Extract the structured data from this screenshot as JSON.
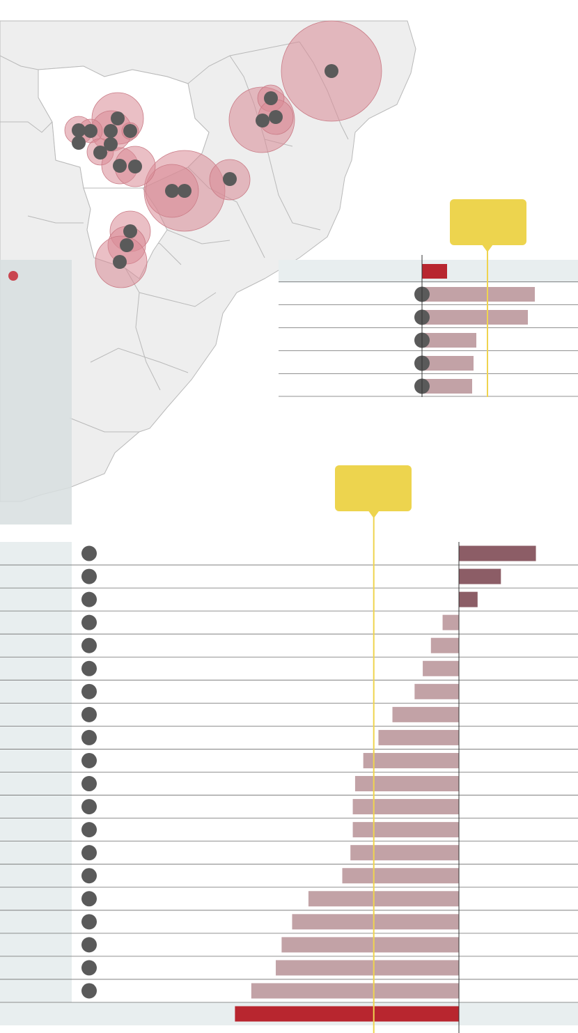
{
  "colors": {
    "land": "#eeeeee",
    "land_stroke": "#b9b9b9",
    "circle_fill": "#d98a95",
    "dot": "#5a5a5a",
    "bar_pos_top": "#c2a2a6",
    "bar_highlight": "#b8262f",
    "bar_pos_bottom": "#8c5d66",
    "bar_neg_bottom": "#c2a2a6",
    "reference_line": "#efd44f",
    "callout": "#edd44e",
    "panel": "#e8eeef",
    "inset": "#d7dedf",
    "rule": "#6d6d6d"
  },
  "map": {
    "legend_dot": "red-dot-marker",
    "circle_sizes": [
      72,
      36,
      24,
      18,
      18,
      14,
      14,
      14,
      14,
      12,
      12,
      10,
      10,
      9,
      9,
      8,
      8,
      8
    ]
  },
  "chart_data": [
    {
      "type": "bar",
      "orientation": "horizontal",
      "title": "",
      "xlabel": "",
      "ylabel": "",
      "categories": [
        "",
        "",
        "",
        "",
        "",
        ""
      ],
      "values": [
        0.18,
        0.81,
        0.76,
        0.39,
        0.37,
        0.36
      ],
      "highlight_index": 0,
      "reference_value": 0.47,
      "xlim": [
        0,
        1.1
      ],
      "callout_text": ""
    },
    {
      "type": "bar",
      "orientation": "horizontal",
      "title": "",
      "xlabel": "",
      "ylabel": "",
      "categories": [
        "",
        "",
        "",
        "",
        "",
        "",
        "",
        "",
        "",
        "",
        "",
        "",
        "",
        "",
        "",
        "",
        "",
        "",
        "",
        "",
        ""
      ],
      "values": [
        0.33,
        0.18,
        0.08,
        -0.07,
        -0.12,
        -0.155,
        -0.19,
        -0.285,
        -0.345,
        -0.41,
        -0.445,
        -0.455,
        -0.455,
        -0.465,
        -0.5,
        -0.645,
        -0.715,
        -0.76,
        -0.785,
        -0.89,
        -0.96
      ],
      "highlight_index": 20,
      "reference_value": -0.365,
      "xlim": [
        -1.0,
        0.5
      ],
      "callout_text": ""
    }
  ]
}
